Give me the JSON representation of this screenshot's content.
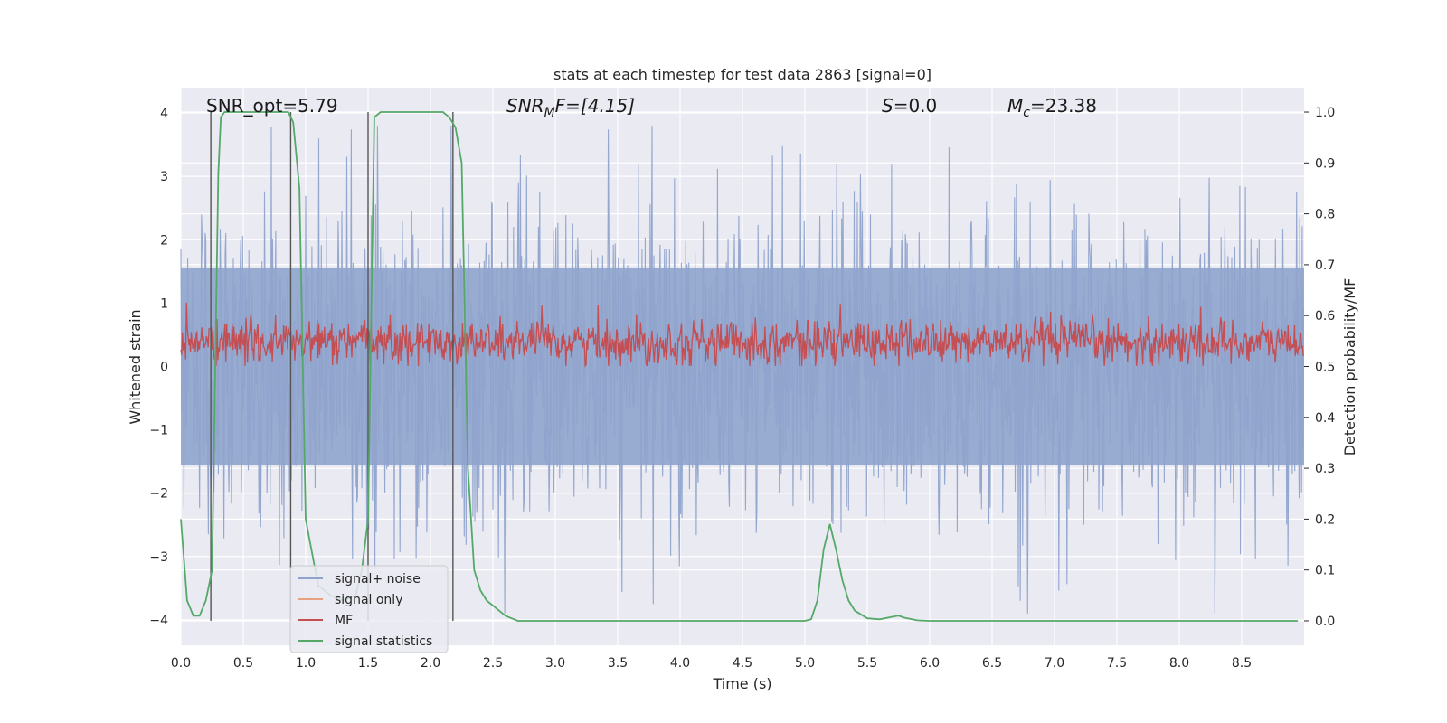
{
  "chart_data": {
    "type": "line",
    "title": "stats at each timestep for test data 2863 [signal=0]",
    "xlabel": "Time (s)",
    "ylabel": "Whitened strain",
    "y2label": "Detection probability/MF",
    "xlim": [
      0.0,
      9.0
    ],
    "ylim": [
      -4.4,
      4.4
    ],
    "y2lim": [
      -0.048,
      1.048
    ],
    "x_ticks": [
      "0.0",
      "0.5",
      "1.0",
      "1.5",
      "2.0",
      "2.5",
      "3.0",
      "3.5",
      "4.0",
      "4.5",
      "5.0",
      "5.5",
      "6.0",
      "6.5",
      "7.0",
      "7.5",
      "8.0",
      "8.5"
    ],
    "y_ticks": [
      "4",
      "3",
      "2",
      "1",
      "0",
      "−1",
      "−2",
      "−3",
      "−4"
    ],
    "y2_ticks": [
      "1.0",
      "0.9",
      "0.8",
      "0.7",
      "0.6",
      "0.5",
      "0.4",
      "0.3",
      "0.2",
      "0.1",
      "0.0"
    ],
    "grid": true,
    "legend_position": "lower-left",
    "annotations": {
      "snr_opt": "SNR_opt=5.79",
      "snr_mf": "SNR",
      "snr_mf_sub": "M",
      "snr_mf_rest": "F=[4.15]",
      "s_label": "S",
      "s_value": "=0.0",
      "mc_label": "M",
      "mc_sub": "c",
      "mc_value": "=23.38"
    },
    "vertical_lines_x": [
      0.24,
      0.88,
      1.5,
      2.18
    ],
    "series": [
      {
        "name": "signal+ noise",
        "color": "#8fa3cc",
        "style": "dense noise band, approx |y| up to ~3.5"
      },
      {
        "name": "signal only",
        "color": "#e8a07e",
        "values": []
      },
      {
        "name": "MF",
        "color": "#c44e52",
        "style": "noisy trace between ~0.5 and ~0.65 on right axis"
      },
      {
        "name": "signal statistics",
        "color": "#55a868",
        "x": [
          0.0,
          0.05,
          0.1,
          0.15,
          0.2,
          0.25,
          0.3,
          0.32,
          0.35,
          0.4,
          0.5,
          0.6,
          0.7,
          0.8,
          0.86,
          0.9,
          0.95,
          1.0,
          1.1,
          1.2,
          1.3,
          1.4,
          1.45,
          1.5,
          1.55,
          1.6,
          1.7,
          1.8,
          1.9,
          2.0,
          2.1,
          2.15,
          2.2,
          2.25,
          2.3,
          2.35,
          2.4,
          2.45,
          2.5,
          2.55,
          2.6,
          2.65,
          2.7,
          2.8,
          3.0,
          3.5,
          4.0,
          4.5,
          5.0,
          5.05,
          5.1,
          5.15,
          5.2,
          5.25,
          5.3,
          5.35,
          5.4,
          5.5,
          5.6,
          5.7,
          5.75,
          5.8,
          5.9,
          6.0,
          6.5,
          7.0,
          7.5,
          8.0,
          8.5,
          8.95
        ],
        "y": [
          0.2,
          0.04,
          0.01,
          0.01,
          0.04,
          0.1,
          0.88,
          0.99,
          1.0,
          1.0,
          1.0,
          1.0,
          1.0,
          1.0,
          1.0,
          0.98,
          0.85,
          0.2,
          0.07,
          0.05,
          0.04,
          0.05,
          0.1,
          0.2,
          0.99,
          1.0,
          1.0,
          1.0,
          1.0,
          1.0,
          1.0,
          0.99,
          0.97,
          0.9,
          0.3,
          0.1,
          0.06,
          0.04,
          0.03,
          0.02,
          0.01,
          0.005,
          0.0,
          0.0,
          0.0,
          0.0,
          0.0,
          0.0,
          0.0,
          0.003,
          0.04,
          0.14,
          0.19,
          0.14,
          0.08,
          0.04,
          0.02,
          0.005,
          0.003,
          0.008,
          0.01,
          0.006,
          0.001,
          0.0,
          0.0,
          0.0,
          0.0,
          0.0,
          0.0,
          0.0
        ]
      }
    ]
  }
}
